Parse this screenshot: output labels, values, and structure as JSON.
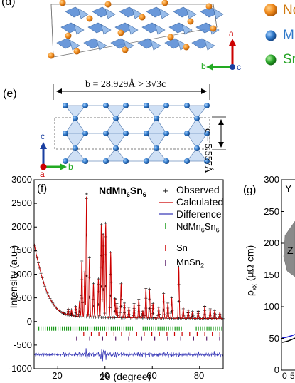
{
  "panel_d": {
    "label": "(d)"
  },
  "legend_atoms": {
    "items": [
      {
        "text": "Nd",
        "color": "#f08a1c"
      },
      {
        "text": "Mn",
        "color": "#2f78c8"
      },
      {
        "text": "Sn",
        "color": "#2aa52a"
      }
    ]
  },
  "axes_top": {
    "a": "a",
    "b": "b",
    "c": "c"
  },
  "panel_e": {
    "label": "(e)",
    "b_expr": "b = 28.929Å > 3√3c",
    "c_expr": "c = 5.557Å",
    "axis_c": "c",
    "axis_a": "a",
    "axis_b": "b"
  },
  "panel_f": {
    "label": "(f)",
    "compound": "NdMn6Sn6"
  },
  "panel_g": {
    "label": "(g)",
    "ylabel": "ρxx (μΩ cm)",
    "yticks": [
      "300",
      "250",
      "200",
      "150",
      "100",
      "50",
      "0"
    ],
    "xtick_partial": "0",
    "xtick_partial2": "5",
    "text_y": "Y",
    "text_z": "Z"
  },
  "chart_data": {
    "type": "scatter",
    "title": "NdMn6Sn6",
    "xlabel": "2θ (degree)",
    "ylabel": "Intensity (a.u.)",
    "xlim": [
      10,
      90
    ],
    "ylim": [
      -1000,
      3000
    ],
    "xticks": [
      "20",
      "40",
      "60",
      "80"
    ],
    "yticks": [
      "3000",
      "2500",
      "2000",
      "1500",
      "1000",
      "500",
      "0",
      "-500",
      "-1000"
    ],
    "legend": {
      "placement": "top-right",
      "entries": [
        {
          "label": "Observed",
          "style": "plus",
          "color": "#000000"
        },
        {
          "label": "Calculated",
          "style": "line",
          "color": "#cc0000"
        },
        {
          "label": "Difference",
          "style": "line",
          "color": "#3b3bb8"
        },
        {
          "label": "NdMn6Sn6",
          "style": "tick",
          "color": "#1a9a1a"
        },
        {
          "label": "Sn",
          "style": "tick",
          "color": "#cc0000"
        },
        {
          "label": "MnSn2",
          "style": "tick",
          "color": "#5a1f6a"
        }
      ]
    },
    "background": [
      [
        10,
        1650
      ],
      [
        11,
        1400
      ],
      [
        12,
        1200
      ],
      [
        13,
        1000
      ],
      [
        14,
        830
      ],
      [
        15,
        680
      ],
      [
        16,
        560
      ],
      [
        17,
        460
      ],
      [
        18,
        380
      ],
      [
        19,
        310
      ],
      [
        20,
        250
      ],
      [
        22,
        180
      ],
      [
        24,
        140
      ],
      [
        26,
        120
      ],
      [
        30,
        100
      ],
      [
        40,
        85
      ],
      [
        60,
        70
      ],
      [
        90,
        60
      ]
    ],
    "peaks": [
      [
        22.5,
        180
      ],
      [
        24.4,
        260
      ],
      [
        25.8,
        250
      ],
      [
        27.6,
        320
      ],
      [
        29.2,
        410
      ],
      [
        30.2,
        1280
      ],
      [
        31.4,
        1050
      ],
      [
        32.2,
        2700
      ],
      [
        33.4,
        1350
      ],
      [
        35.1,
        800
      ],
      [
        37.2,
        900
      ],
      [
        38.4,
        2050
      ],
      [
        39.2,
        1850
      ],
      [
        40.3,
        2080
      ],
      [
        42.4,
        1460
      ],
      [
        44.2,
        490
      ],
      [
        45.0,
        380
      ],
      [
        46.8,
        800
      ],
      [
        48.2,
        390
      ],
      [
        50.1,
        300
      ],
      [
        52.3,
        380
      ],
      [
        54.3,
        470
      ],
      [
        56.0,
        220
      ],
      [
        57.3,
        700
      ],
      [
        58.8,
        680
      ],
      [
        60.3,
        380
      ],
      [
        62.7,
        300
      ],
      [
        64.8,
        590
      ],
      [
        66.6,
        390
      ],
      [
        68.2,
        500
      ],
      [
        71.2,
        1150
      ],
      [
        73.1,
        270
      ],
      [
        75.2,
        240
      ],
      [
        77.0,
        210
      ],
      [
        79.4,
        220
      ],
      [
        82.2,
        320
      ],
      [
        84.5,
        270
      ],
      [
        86.4,
        230
      ],
      [
        88.6,
        200
      ]
    ],
    "reflection_rows": [
      {
        "phase": "NdMn6Sn6",
        "offset": -150,
        "color": "#1a9a1a"
      },
      {
        "phase": "Sn",
        "offset": -260,
        "color": "#cc0000"
      },
      {
        "phase": "MnSn2",
        "offset": -360,
        "color": "#5a1f6a"
      }
    ],
    "difference_baseline": -700
  }
}
